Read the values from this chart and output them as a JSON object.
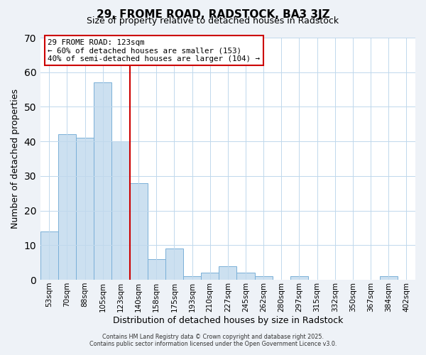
{
  "title": "29, FROME ROAD, RADSTOCK, BA3 3JZ",
  "subtitle": "Size of property relative to detached houses in Radstock",
  "xlabel": "Distribution of detached houses by size in Radstock",
  "ylabel": "Number of detached properties",
  "bin_labels": [
    "53sqm",
    "70sqm",
    "88sqm",
    "105sqm",
    "123sqm",
    "140sqm",
    "158sqm",
    "175sqm",
    "193sqm",
    "210sqm",
    "227sqm",
    "245sqm",
    "262sqm",
    "280sqm",
    "297sqm",
    "315sqm",
    "332sqm",
    "350sqm",
    "367sqm",
    "384sqm",
    "402sqm"
  ],
  "bin_values": [
    14,
    42,
    41,
    57,
    40,
    28,
    6,
    9,
    1,
    2,
    4,
    2,
    1,
    0,
    1,
    0,
    0,
    0,
    0,
    1,
    0
  ],
  "bar_color": "#cce0f0",
  "bar_edge_color": "#7ab0d8",
  "vline_color": "#cc0000",
  "ylim": [
    0,
    70
  ],
  "yticks": [
    0,
    10,
    20,
    30,
    40,
    50,
    60,
    70
  ],
  "annotation_title": "29 FROME ROAD: 123sqm",
  "annotation_line1": "← 60% of detached houses are smaller (153)",
  "annotation_line2": "40% of semi-detached houses are larger (104) →",
  "annotation_box_color": "#ffffff",
  "annotation_box_edge": "#cc0000",
  "footer1": "Contains HM Land Registry data © Crown copyright and database right 2025.",
  "footer2": "Contains public sector information licensed under the Open Government Licence v3.0.",
  "background_color": "#eef2f7",
  "plot_background_color": "#ffffff",
  "grid_color": "#c0d8ec",
  "title_fontsize": 11,
  "subtitle_fontsize": 9
}
